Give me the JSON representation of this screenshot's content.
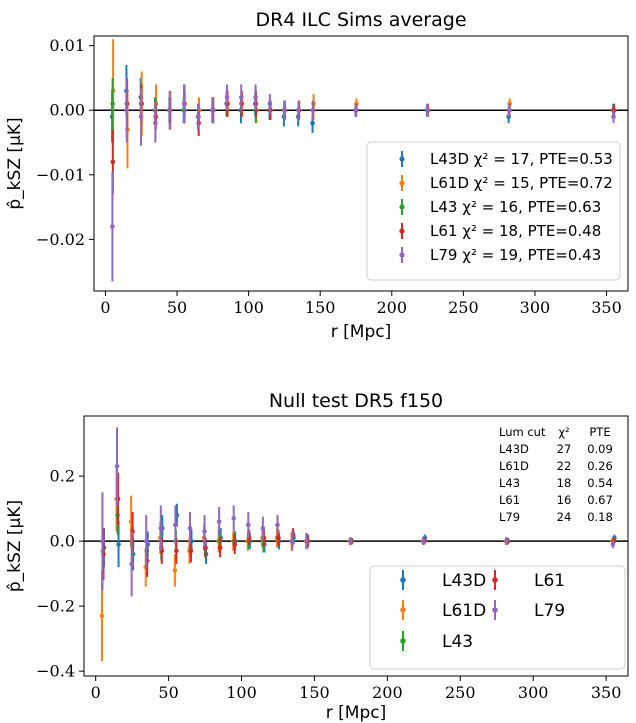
{
  "chart_data": [
    {
      "type": "scatter",
      "title": "DR4 ILC Sims average",
      "xlabel": "r [Mpc]",
      "ylabel": "p̂_kSZ [μK]",
      "xlim": [
        -8,
        365
      ],
      "ylim": [
        -0.028,
        0.0115
      ],
      "xticks": [
        0,
        50,
        100,
        150,
        200,
        250,
        300,
        350
      ],
      "xtick_labels": [
        "0",
        "50",
        "100",
        "150",
        "200",
        "250",
        "300",
        "350"
      ],
      "yticks": [
        -0.02,
        -0.01,
        0.0,
        0.01
      ],
      "ytick_labels": [
        "−0.02",
        "−0.01",
        "0.00",
        "0.01"
      ],
      "zero_line": true,
      "legend_position": "lower-right",
      "x": [
        5,
        15,
        25,
        35,
        45,
        55,
        65,
        75,
        85,
        95,
        105,
        115,
        125,
        135,
        145,
        175,
        225,
        282,
        355
      ],
      "series": [
        {
          "name": "L43D",
          "legend_label": "L43D χ² = 17, PTE=0.53",
          "color": "#1f77b4",
          "y": [
            -0.001,
            0.003,
            0.002,
            0.0,
            0.0,
            0.0,
            -0.001,
            0.0,
            0.001,
            0.0,
            0.001,
            0.0,
            -0.001,
            -0.001,
            -0.002,
            0.0,
            0.0,
            -0.001,
            0.0
          ],
          "err": [
            0.004,
            0.004,
            0.003,
            0.002,
            0.002,
            0.002,
            0.002,
            0.002,
            0.002,
            0.002,
            0.002,
            0.0015,
            0.0015,
            0.0015,
            0.0015,
            0.001,
            0.001,
            0.001,
            0.001
          ]
        },
        {
          "name": "L61D",
          "legend_label": "L61D χ² = 15, PTE=0.72",
          "color": "#ff7f0e",
          "y": [
            0.003,
            -0.003,
            0.001,
            0.001,
            0.0,
            0.001,
            0.0,
            0.0,
            0.001,
            0.001,
            0.0,
            0.0,
            0.0,
            0.0,
            0.001,
            0.001,
            0.0,
            0.001,
            0.0
          ],
          "err": [
            0.008,
            0.006,
            0.005,
            0.003,
            0.003,
            0.003,
            0.002,
            0.002,
            0.002,
            0.002,
            0.002,
            0.0015,
            0.0015,
            0.0015,
            0.0015,
            0.0008,
            0.0008,
            0.0008,
            0.0008
          ]
        },
        {
          "name": "L43",
          "legend_label": "L43 χ² = 16, PTE=0.63",
          "color": "#2ca02c",
          "y": [
            0.001,
            0.001,
            0.001,
            0.0,
            0.0,
            0.0,
            -0.001,
            0.0,
            0.001,
            0.001,
            0.0,
            0.0,
            0.0,
            0.0,
            0.0,
            0.0,
            0.0,
            0.0,
            0.0
          ],
          "err": [
            0.004,
            0.004,
            0.003,
            0.002,
            0.002,
            0.002,
            0.002,
            0.002,
            0.002,
            0.002,
            0.002,
            0.0015,
            0.0015,
            0.0015,
            0.0015,
            0.001,
            0.001,
            0.001,
            0.001
          ]
        },
        {
          "name": "L61",
          "legend_label": "L61 χ² = 18, PTE=0.48",
          "color": "#d62728",
          "y": [
            -0.008,
            0.001,
            0.001,
            -0.001,
            0.0,
            0.001,
            -0.002,
            0.0,
            0.001,
            0.001,
            0.001,
            0.0,
            0.0,
            0.0,
            0.0,
            0.0,
            0.0,
            0.0,
            0.0
          ],
          "err": [
            0.005,
            0.004,
            0.003,
            0.002,
            0.002,
            0.002,
            0.002,
            0.002,
            0.002,
            0.002,
            0.002,
            0.0015,
            0.0015,
            0.0015,
            0.0015,
            0.001,
            0.001,
            0.001,
            0.001
          ]
        },
        {
          "name": "L79",
          "legend_label": "L79 χ² = 19, PTE=0.43",
          "color": "#9467bd",
          "y": [
            -0.018,
            0.0,
            -0.001,
            -0.002,
            0.0,
            0.001,
            -0.001,
            0.0,
            0.002,
            0.002,
            0.002,
            0.001,
            0.0,
            0.0,
            0.0,
            0.0,
            0.0,
            0.0,
            -0.001
          ],
          "err": [
            0.0085,
            0.005,
            0.0045,
            0.003,
            0.003,
            0.003,
            0.002,
            0.002,
            0.002,
            0.002,
            0.002,
            0.0015,
            0.0015,
            0.0015,
            0.0015,
            0.001,
            0.001,
            0.001,
            0.001
          ]
        }
      ]
    },
    {
      "type": "scatter",
      "title": "Null test DR5 f150",
      "xlabel": "r [Mpc]",
      "ylabel": "p̂_kSZ [μK]",
      "xlim": [
        -8,
        365
      ],
      "ylim": [
        -0.415,
        0.385
      ],
      "xticks": [
        0,
        50,
        100,
        150,
        200,
        250,
        300,
        350
      ],
      "xtick_labels": [
        "0",
        "50",
        "100",
        "150",
        "200",
        "250",
        "300",
        "350"
      ],
      "yticks": [
        -0.4,
        -0.2,
        0.0,
        0.2
      ],
      "ytick_labels": [
        "−0.4",
        "−0.2",
        "0.0",
        "0.2"
      ],
      "zero_line": true,
      "legend_position": "lower-right",
      "table": {
        "headers": [
          "Lum cut",
          "χ²",
          "PTE"
        ],
        "rows": [
          [
            "L43D",
            "27",
            "0.09"
          ],
          [
            "L61D",
            "22",
            "0.26"
          ],
          [
            "L43",
            "18",
            "0.54"
          ],
          [
            "L61",
            "16",
            "0.67"
          ],
          [
            "L79",
            "24",
            "0.18"
          ]
        ]
      },
      "x": [
        5,
        15,
        25,
        35,
        45,
        55,
        65,
        75,
        85,
        95,
        105,
        115,
        125,
        135,
        145,
        175,
        225,
        282,
        355
      ],
      "series": [
        {
          "name": "L43D",
          "legend_label": "L43D",
          "color": "#1f77b4",
          "y": [
            -0.02,
            -0.01,
            -0.04,
            -0.01,
            0.04,
            0.08,
            0.0,
            -0.04,
            0.01,
            0.0,
            0.0,
            -0.01,
            0.0,
            0.01,
            0.0,
            0.0,
            0.01,
            0.0,
            0.01
          ],
          "err": [
            0.06,
            0.07,
            0.05,
            0.04,
            0.04,
            0.035,
            0.035,
            0.03,
            0.03,
            0.03,
            0.025,
            0.025,
            0.025,
            0.02,
            0.02,
            0.01,
            0.01,
            0.01,
            0.01
          ]
        },
        {
          "name": "L61D",
          "legend_label": "L61D",
          "color": "#ff7f0e",
          "y": [
            -0.23,
            0.13,
            0.06,
            -0.08,
            0.01,
            -0.09,
            -0.03,
            0.01,
            0.0,
            0.0,
            0.0,
            0.01,
            0.01,
            0.0,
            0.0,
            0.0,
            0.0,
            0.0,
            0.0
          ],
          "err": [
            0.14,
            0.1,
            0.08,
            0.06,
            0.05,
            0.05,
            0.04,
            0.04,
            0.035,
            0.03,
            0.03,
            0.03,
            0.03,
            0.025,
            0.025,
            0.012,
            0.012,
            0.012,
            0.012
          ]
        },
        {
          "name": "L43",
          "legend_label": "L43",
          "color": "#2ca02c",
          "y": [
            -0.03,
            0.08,
            -0.01,
            -0.03,
            -0.02,
            0.0,
            -0.02,
            -0.02,
            0.0,
            0.0,
            0.0,
            -0.01,
            0.01,
            0.0,
            0.0,
            0.0,
            0.0,
            0.0,
            0.0
          ],
          "err": [
            0.06,
            0.06,
            0.05,
            0.04,
            0.04,
            0.035,
            0.03,
            0.03,
            0.03,
            0.025,
            0.025,
            0.025,
            0.02,
            0.02,
            0.02,
            0.01,
            0.01,
            0.01,
            0.01
          ]
        },
        {
          "name": "L61",
          "legend_label": "L61",
          "color": "#d62728",
          "y": [
            -0.04,
            0.13,
            0.03,
            -0.06,
            -0.03,
            -0.03,
            -0.03,
            -0.02,
            -0.02,
            -0.01,
            0.01,
            0.01,
            0.01,
            0.02,
            0.0,
            0.0,
            0.0,
            0.0,
            0.0
          ],
          "err": [
            0.08,
            0.08,
            0.06,
            0.05,
            0.04,
            0.04,
            0.035,
            0.03,
            0.03,
            0.03,
            0.025,
            0.025,
            0.025,
            0.02,
            0.02,
            0.01,
            0.01,
            0.01,
            0.01
          ]
        },
        {
          "name": "L79",
          "legend_label": "L79",
          "color": "#9467bd",
          "y": [
            0.0,
            0.23,
            -0.07,
            0.0,
            0.04,
            0.05,
            0.04,
            0.03,
            0.06,
            0.07,
            0.05,
            0.04,
            0.05,
            0.0,
            0.0,
            0.0,
            0.0,
            0.0,
            -0.01
          ],
          "err": [
            0.15,
            0.12,
            0.1,
            0.08,
            0.07,
            0.06,
            0.05,
            0.05,
            0.045,
            0.04,
            0.04,
            0.035,
            0.03,
            0.03,
            0.025,
            0.012,
            0.012,
            0.012,
            0.012
          ]
        }
      ]
    }
  ]
}
